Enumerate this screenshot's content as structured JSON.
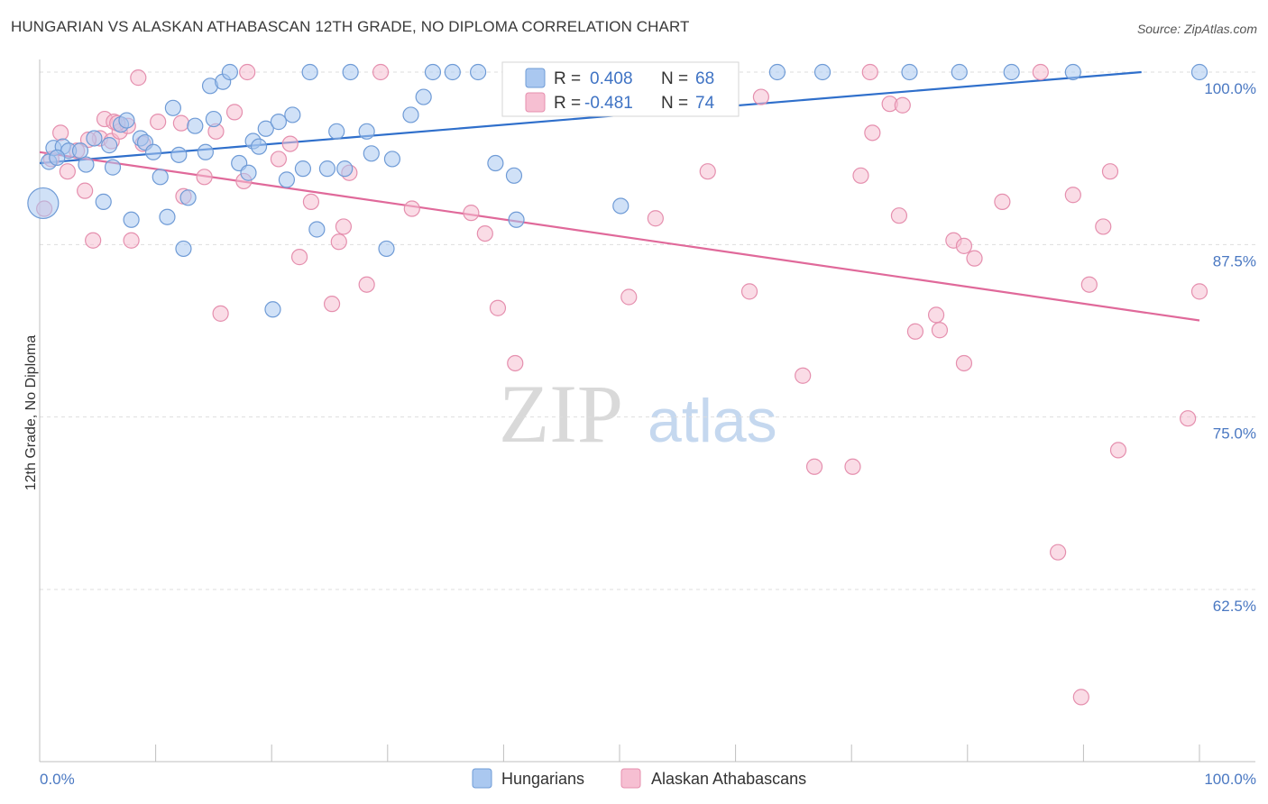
{
  "title": "HUNGARIAN VS ALASKAN ATHABASCAN 12TH GRADE, NO DIPLOMA CORRELATION CHART",
  "source": "Source: ZipAtlas.com",
  "watermark": {
    "zip": "ZIP",
    "atlas": "atlas"
  },
  "colors": {
    "blue_fill": "#aac8f0",
    "blue_stroke": "#6f9bd6",
    "blue_line": "#2f6fcb",
    "pink_fill": "#f6bfd2",
    "pink_stroke": "#e58fae",
    "pink_line": "#e0699a",
    "axis_text": "#4a78c2",
    "grid": "#dddddd"
  },
  "chart_data": {
    "type": "scatter",
    "title": "HUNGARIAN VS ALASKAN ATHABASCAN 12TH GRADE, NO DIPLOMA CORRELATION CHART",
    "xlabel": "",
    "ylabel": "12th Grade, No Diploma",
    "xlim": [
      0,
      100
    ],
    "ylim": [
      50.5,
      101.5
    ],
    "x_tick_labels": [
      "0.0%",
      "100.0%"
    ],
    "y_ticks": [
      62.5,
      75.0,
      87.5,
      100.0
    ],
    "y_tick_labels": [
      "62.5%",
      "75.0%",
      "87.5%",
      "100.0%"
    ],
    "grid": true,
    "legend_position": "bottom",
    "legend": [
      "Hungarians",
      "Alaskan Athabascans"
    ],
    "stats": [
      {
        "r_label": "R =",
        "r_value": "0.408",
        "n_label": "N =",
        "n_value": "68"
      },
      {
        "r_label": "R =",
        "r_value": "-0.481",
        "n_label": "N =",
        "n_value": "74"
      }
    ],
    "series": [
      {
        "name": "Hungarians",
        "trend": {
          "x": [
            0,
            95
          ],
          "y": [
            93.4,
            100.0
          ]
        },
        "points": [
          {
            "x": 0.3,
            "y": 90.5,
            "big": true
          },
          {
            "x": 0.8,
            "y": 93.5
          },
          {
            "x": 1.2,
            "y": 94.5
          },
          {
            "x": 2.0,
            "y": 94.6
          },
          {
            "x": 2.5,
            "y": 94.3
          },
          {
            "x": 3.5,
            "y": 94.3
          },
          {
            "x": 4.0,
            "y": 93.3
          },
          {
            "x": 4.7,
            "y": 95.2
          },
          {
            "x": 5.5,
            "y": 90.6
          },
          {
            "x": 6.0,
            "y": 94.7
          },
          {
            "x": 6.3,
            "y": 93.1
          },
          {
            "x": 7.0,
            "y": 96.2
          },
          {
            "x": 7.5,
            "y": 96.5
          },
          {
            "x": 7.9,
            "y": 89.3
          },
          {
            "x": 8.7,
            "y": 95.2
          },
          {
            "x": 9.1,
            "y": 94.9
          },
          {
            "x": 9.8,
            "y": 94.2
          },
          {
            "x": 10.4,
            "y": 92.4
          },
          {
            "x": 11.0,
            "y": 89.5
          },
          {
            "x": 11.5,
            "y": 97.4
          },
          {
            "x": 12.0,
            "y": 94.0
          },
          {
            "x": 12.4,
            "y": 87.2
          },
          {
            "x": 12.8,
            "y": 90.9
          },
          {
            "x": 13.4,
            "y": 96.1
          },
          {
            "x": 14.3,
            "y": 94.2
          },
          {
            "x": 14.7,
            "y": 99.0
          },
          {
            "x": 15.0,
            "y": 96.6
          },
          {
            "x": 15.8,
            "y": 99.3
          },
          {
            "x": 16.4,
            "y": 100.0
          },
          {
            "x": 17.2,
            "y": 93.4
          },
          {
            "x": 18.0,
            "y": 92.7
          },
          {
            "x": 18.4,
            "y": 95.0
          },
          {
            "x": 18.9,
            "y": 94.6
          },
          {
            "x": 19.5,
            "y": 95.9
          },
          {
            "x": 20.1,
            "y": 82.8
          },
          {
            "x": 20.6,
            "y": 96.4
          },
          {
            "x": 21.3,
            "y": 92.2
          },
          {
            "x": 21.8,
            "y": 96.9
          },
          {
            "x": 22.7,
            "y": 93.0
          },
          {
            "x": 23.3,
            "y": 100.0
          },
          {
            "x": 23.9,
            "y": 88.6
          },
          {
            "x": 24.8,
            "y": 93.0
          },
          {
            "x": 25.6,
            "y": 95.7
          },
          {
            "x": 26.3,
            "y": 93.0
          },
          {
            "x": 26.8,
            "y": 100.0
          },
          {
            "x": 28.2,
            "y": 95.7
          },
          {
            "x": 28.6,
            "y": 94.1
          },
          {
            "x": 29.9,
            "y": 87.2
          },
          {
            "x": 30.4,
            "y": 93.7
          },
          {
            "x": 32.0,
            "y": 96.9
          },
          {
            "x": 33.1,
            "y": 98.2
          },
          {
            "x": 33.9,
            "y": 100.0
          },
          {
            "x": 35.6,
            "y": 100.0
          },
          {
            "x": 37.8,
            "y": 100.0
          },
          {
            "x": 39.3,
            "y": 93.4
          },
          {
            "x": 40.9,
            "y": 92.5
          },
          {
            "x": 41.1,
            "y": 89.3
          },
          {
            "x": 45.8,
            "y": 100.0
          },
          {
            "x": 50.1,
            "y": 90.3
          },
          {
            "x": 53.8,
            "y": 100.0
          },
          {
            "x": 63.6,
            "y": 100.0
          },
          {
            "x": 67.5,
            "y": 100.0
          },
          {
            "x": 75.0,
            "y": 100.0
          },
          {
            "x": 79.3,
            "y": 100.0
          },
          {
            "x": 83.8,
            "y": 100.0
          },
          {
            "x": 89.1,
            "y": 100.0
          },
          {
            "x": 100.0,
            "y": 100.0
          },
          {
            "x": 1.5,
            "y": 93.8
          }
        ]
      },
      {
        "name": "Alaskan Athabascans",
        "trend": {
          "x": [
            0,
            100
          ],
          "y": [
            94.2,
            82.0
          ]
        },
        "points": [
          {
            "x": 0.4,
            "y": 90.1
          },
          {
            "x": 1.0,
            "y": 93.7
          },
          {
            "x": 1.8,
            "y": 95.6
          },
          {
            "x": 2.4,
            "y": 92.8
          },
          {
            "x": 3.2,
            "y": 94.3
          },
          {
            "x": 3.9,
            "y": 91.4
          },
          {
            "x": 4.6,
            "y": 87.8
          },
          {
            "x": 5.2,
            "y": 95.2
          },
          {
            "x": 5.6,
            "y": 96.6
          },
          {
            "x": 6.2,
            "y": 95.0
          },
          {
            "x": 6.4,
            "y": 96.4
          },
          {
            "x": 6.9,
            "y": 95.7
          },
          {
            "x": 7.6,
            "y": 96.1
          },
          {
            "x": 7.9,
            "y": 87.8
          },
          {
            "x": 8.5,
            "y": 99.6
          },
          {
            "x": 8.9,
            "y": 94.8
          },
          {
            "x": 10.2,
            "y": 96.4
          },
          {
            "x": 12.2,
            "y": 96.3
          },
          {
            "x": 12.4,
            "y": 91.0
          },
          {
            "x": 14.2,
            "y": 92.4
          },
          {
            "x": 15.2,
            "y": 95.7
          },
          {
            "x": 15.6,
            "y": 82.5
          },
          {
            "x": 16.8,
            "y": 97.1
          },
          {
            "x": 17.6,
            "y": 92.1
          },
          {
            "x": 17.9,
            "y": 100.0
          },
          {
            "x": 20.6,
            "y": 93.7
          },
          {
            "x": 21.6,
            "y": 94.8
          },
          {
            "x": 22.4,
            "y": 86.6
          },
          {
            "x": 23.4,
            "y": 90.6
          },
          {
            "x": 25.2,
            "y": 83.2
          },
          {
            "x": 25.8,
            "y": 87.7
          },
          {
            "x": 26.2,
            "y": 88.8
          },
          {
            "x": 26.7,
            "y": 92.7
          },
          {
            "x": 28.2,
            "y": 84.6
          },
          {
            "x": 29.4,
            "y": 100.0
          },
          {
            "x": 32.1,
            "y": 90.1
          },
          {
            "x": 37.2,
            "y": 89.8
          },
          {
            "x": 38.4,
            "y": 88.3
          },
          {
            "x": 39.5,
            "y": 82.9
          },
          {
            "x": 41.0,
            "y": 78.9
          },
          {
            "x": 50.8,
            "y": 83.7
          },
          {
            "x": 53.1,
            "y": 89.4
          },
          {
            "x": 57.6,
            "y": 92.8
          },
          {
            "x": 61.2,
            "y": 84.1
          },
          {
            "x": 62.2,
            "y": 98.2
          },
          {
            "x": 65.8,
            "y": 78.0
          },
          {
            "x": 66.8,
            "y": 71.4
          },
          {
            "x": 70.1,
            "y": 71.4
          },
          {
            "x": 70.8,
            "y": 92.5
          },
          {
            "x": 71.6,
            "y": 100.0
          },
          {
            "x": 71.8,
            "y": 95.6
          },
          {
            "x": 73.3,
            "y": 97.7
          },
          {
            "x": 74.1,
            "y": 89.6
          },
          {
            "x": 74.4,
            "y": 97.6
          },
          {
            "x": 75.5,
            "y": 81.2
          },
          {
            "x": 77.3,
            "y": 82.4
          },
          {
            "x": 77.6,
            "y": 81.3
          },
          {
            "x": 78.8,
            "y": 87.8
          },
          {
            "x": 79.7,
            "y": 87.4
          },
          {
            "x": 79.7,
            "y": 78.9
          },
          {
            "x": 80.6,
            "y": 86.5
          },
          {
            "x": 83.0,
            "y": 90.6
          },
          {
            "x": 86.3,
            "y": 100.0
          },
          {
            "x": 87.8,
            "y": 65.2
          },
          {
            "x": 89.1,
            "y": 91.1
          },
          {
            "x": 89.8,
            "y": 54.7
          },
          {
            "x": 90.5,
            "y": 84.6
          },
          {
            "x": 91.7,
            "y": 88.8
          },
          {
            "x": 92.3,
            "y": 92.8
          },
          {
            "x": 93.0,
            "y": 72.6
          },
          {
            "x": 99.0,
            "y": 74.9
          },
          {
            "x": 100.0,
            "y": 84.1
          },
          {
            "x": 6.7,
            "y": 96.3
          },
          {
            "x": 4.2,
            "y": 95.1
          }
        ]
      }
    ]
  }
}
